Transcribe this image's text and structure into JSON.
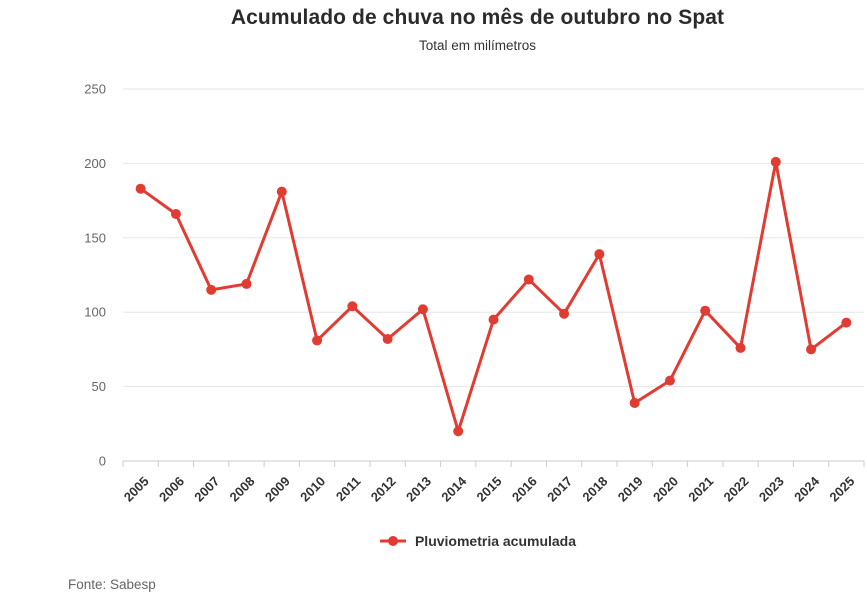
{
  "header": {
    "title": "Acumulado de chuva no mês de outubro no Spat",
    "subtitle": "Total em milímetros"
  },
  "legend": {
    "label": "Pluviometria acumulada"
  },
  "footer": {
    "source": "Fonte: Sabesp"
  },
  "colors": {
    "series": "#e03c32",
    "grid": "#e6e6e6",
    "axis": "#cccccc",
    "ytick_label": "#666666",
    "xtick_label": "#333333"
  },
  "chart_data": {
    "type": "line",
    "title": "Acumulado de chuva no mês de outubro no Spat",
    "subtitle": "Total em milímetros",
    "categories": [
      "2005",
      "2006",
      "2007",
      "2008",
      "2009",
      "2010",
      "2011",
      "2012",
      "2013",
      "2014",
      "2015",
      "2016",
      "2017",
      "2018",
      "2019",
      "2020",
      "2021",
      "2022",
      "2023",
      "2024",
      "2025"
    ],
    "series": [
      {
        "name": "Pluviometria acumulada",
        "color": "#e03c32",
        "values": [
          183,
          166,
          115,
          119,
          181,
          81,
          104,
          82,
          102,
          20,
          95,
          122,
          99,
          139,
          39,
          54,
          101,
          76,
          201,
          75,
          93
        ]
      }
    ],
    "xlabel": "",
    "ylabel": "",
    "ylim": [
      0,
      250
    ],
    "yticks": [
      0,
      50,
      100,
      150,
      200,
      250
    ],
    "grid": true,
    "legend_position": "bottom",
    "marker": "circle"
  }
}
